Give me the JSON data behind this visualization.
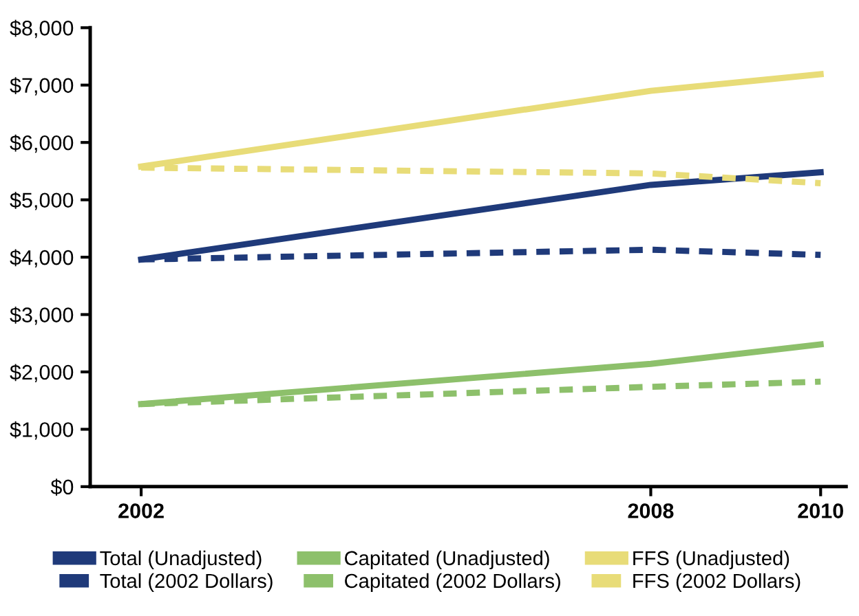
{
  "chart_data": {
    "type": "line",
    "x": [
      2002,
      2008,
      2010
    ],
    "xlim": [
      2001.4,
      2010.3
    ],
    "xticks": [
      2002,
      2008,
      2010
    ],
    "ylim": [
      0,
      8000
    ],
    "yticks": [
      {
        "value": 0,
        "label": "$0"
      },
      {
        "value": 1000,
        "label": "$1,000"
      },
      {
        "value": 2000,
        "label": "$2,000"
      },
      {
        "value": 3000,
        "label": "$3,000"
      },
      {
        "value": 4000,
        "label": "$4,000"
      },
      {
        "value": 5000,
        "label": "$5,000"
      },
      {
        "value": 6000,
        "label": "$6,000"
      },
      {
        "value": 7000,
        "label": "$7,000"
      },
      {
        "value": 8000,
        "label": "$8,000"
      }
    ],
    "grid": false,
    "legend": "bottom",
    "marker": "none",
    "series": [
      {
        "name": "Total (Unadjusted)",
        "color": "#1f3a7a",
        "line_style": "solid",
        "values": [
          3960,
          5260,
          5480
        ]
      },
      {
        "name": "Total (2002 Dollars)",
        "color": "#1f3a7a",
        "line_style": "dashed",
        "values": [
          3960,
          4130,
          4040
        ]
      },
      {
        "name": "Capitated (Unadjusted)",
        "color": "#8dc06b",
        "line_style": "solid",
        "values": [
          1440,
          2140,
          2480
        ]
      },
      {
        "name": "Capitated (2002 Dollars)",
        "color": "#8dc06b",
        "line_style": "dashed",
        "values": [
          1440,
          1740,
          1830
        ]
      },
      {
        "name": "FFS (Unadjusted)",
        "color": "#e8dc78",
        "line_style": "solid",
        "values": [
          5580,
          6900,
          7190
        ]
      },
      {
        "name": "FFS (2002 Dollars)",
        "color": "#e8dc78",
        "line_style": "dashed",
        "values": [
          5560,
          5460,
          5290
        ]
      }
    ]
  }
}
